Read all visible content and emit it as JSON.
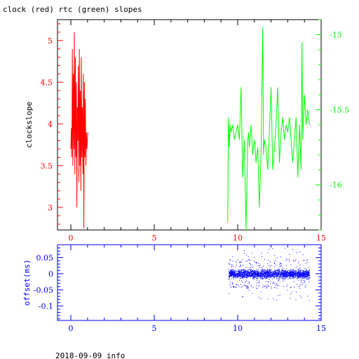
{
  "chart_data": [
    {
      "type": "line",
      "title": "clock (red) rtc (green) slopes",
      "ylabel": "clockslope",
      "xlim": [
        -0.8,
        15
      ],
      "x_ticks": [
        0,
        5,
        10,
        15
      ],
      "ylim_left": [
        2.73,
        5.25
      ],
      "y_ticks_left": [
        3,
        3.5,
        4,
        4.5,
        5
      ],
      "ylim_right": [
        -16.3,
        -14.9
      ],
      "y_ticks_right": [
        -15,
        -15.5,
        -16
      ],
      "colors": {
        "clock": "#ff0000",
        "rtc": "#00ff00",
        "axis": "#000000"
      },
      "series": [
        {
          "name": "clock",
          "axis": "left",
          "x": [
            0.0,
            0.03,
            0.06,
            0.09,
            0.12,
            0.15,
            0.18,
            0.21,
            0.24,
            0.27,
            0.3,
            0.33,
            0.36,
            0.39,
            0.42,
            0.45,
            0.48,
            0.51,
            0.54,
            0.57,
            0.6,
            0.63,
            0.66,
            0.69,
            0.72,
            0.75,
            0.78,
            0.81,
            0.84,
            0.87,
            0.9,
            0.93,
            0.96,
            0.99,
            1.02
          ],
          "y": [
            3.7,
            3.95,
            3.6,
            4.9,
            3.5,
            4.6,
            3.7,
            5.1,
            3.4,
            4.8,
            3.6,
            4.5,
            3.0,
            4.2,
            3.8,
            4.7,
            3.3,
            4.9,
            3.5,
            4.4,
            3.2,
            4.8,
            3.6,
            4.2,
            3.4,
            4.6,
            2.75,
            4.5,
            3.6,
            4.3,
            3.5,
            3.9,
            3.7,
            3.8,
            3.9
          ]
        },
        {
          "name": "rtc",
          "axis": "right",
          "x": [
            9.4,
            9.45,
            9.5,
            9.55,
            9.6,
            9.7,
            9.8,
            9.9,
            10.0,
            10.1,
            10.2,
            10.3,
            10.4,
            10.5,
            10.6,
            10.65,
            10.7,
            10.8,
            10.9,
            11.0,
            11.1,
            11.2,
            11.3,
            11.4,
            11.5,
            11.55,
            11.6,
            11.7,
            11.8,
            11.9,
            12.0,
            12.1,
            12.2,
            12.3,
            12.4,
            12.5,
            12.6,
            12.7,
            12.8,
            12.9,
            13.0,
            13.1,
            13.2,
            13.3,
            13.4,
            13.5,
            13.6,
            13.7,
            13.8,
            13.85,
            13.9,
            14.0,
            14.1,
            14.2,
            14.3
          ],
          "y": [
            -16.25,
            -15.55,
            -15.75,
            -15.6,
            -15.65,
            -15.6,
            -15.7,
            -15.65,
            -15.6,
            -15.7,
            -15.35,
            -15.95,
            -15.7,
            -16.3,
            -15.7,
            -15.65,
            -15.75,
            -15.6,
            -15.8,
            -15.7,
            -15.85,
            -15.75,
            -16.15,
            -15.8,
            -14.95,
            -15.8,
            -15.7,
            -15.75,
            -15.9,
            -15.65,
            -15.35,
            -15.9,
            -15.75,
            -15.6,
            -15.35,
            -15.85,
            -15.65,
            -15.55,
            -15.7,
            -15.6,
            -15.65,
            -15.55,
            -15.7,
            -15.85,
            -15.7,
            -15.55,
            -15.95,
            -15.6,
            -15.9,
            -15.05,
            -15.7,
            -15.4,
            -15.6,
            -15.5,
            -15.6
          ]
        }
      ]
    },
    {
      "type": "scatter",
      "ylabel": "offset(ms)",
      "xlim": [
        -0.8,
        15
      ],
      "x_ticks": [
        0,
        5,
        10,
        15
      ],
      "ylim": [
        -0.145,
        0.09
      ],
      "y_ticks": [
        0.05,
        0,
        -0.05,
        -0.1
      ],
      "colors": {
        "points": "#0000ff",
        "axis": "#0000ff"
      },
      "series": [
        {
          "name": "offset",
          "x_range": [
            9.45,
            14.3
          ],
          "y_center": 0.0,
          "y_band_spread": 0.012,
          "y_outlier_max": 0.08,
          "y_outlier_min": -0.14
        }
      ]
    }
  ],
  "footer": {
    "text": "2018-09-09 info"
  }
}
